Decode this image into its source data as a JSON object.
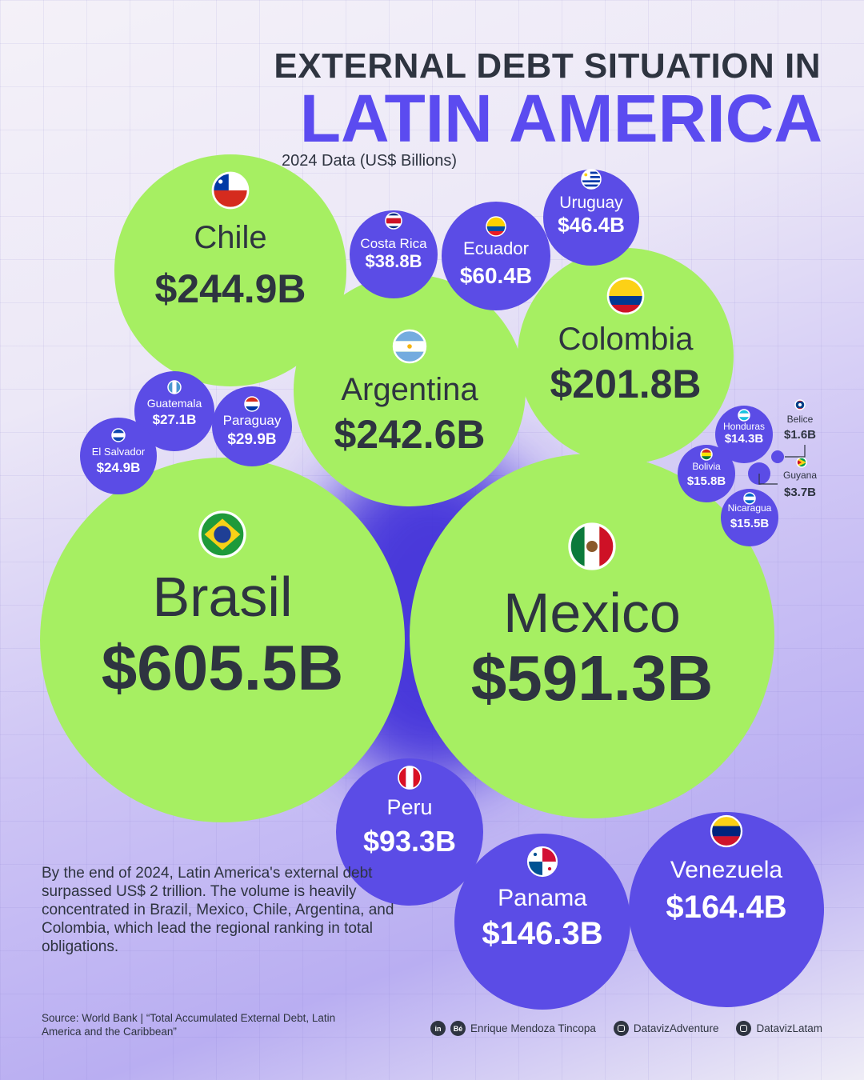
{
  "header": {
    "title_line1": "EXTERNAL DEBT SITUATION IN",
    "title_line2": "LATIN AMERICA",
    "subtitle": "2024 Data (US$ Billions)"
  },
  "chart_data": {
    "type": "bubble",
    "title": "EXTERNAL DEBT SITUATION IN LATIN AMERICA",
    "subtitle": "2024 Data (US$ Billions)",
    "unit": "US$ Billions",
    "series": [
      {
        "country": "Brasil",
        "label": "$605.5B",
        "value": 605.5,
        "flag": "brazil-flag-icon"
      },
      {
        "country": "Mexico",
        "label": "$591.3B",
        "value": 591.3,
        "flag": "mexico-flag-icon"
      },
      {
        "country": "Chile",
        "label": "$244.9B",
        "value": 244.9,
        "flag": "chile-flag-icon"
      },
      {
        "country": "Argentina",
        "label": "$242.6B",
        "value": 242.6,
        "flag": "argentina-flag-icon"
      },
      {
        "country": "Colombia",
        "label": "$201.8B",
        "value": 201.8,
        "flag": "colombia-flag-icon"
      },
      {
        "country": "Venezuela",
        "label": "$164.4B",
        "value": 164.4,
        "flag": "venezuela-flag-icon"
      },
      {
        "country": "Panama",
        "label": "$146.3B",
        "value": 146.3,
        "flag": "panama-flag-icon"
      },
      {
        "country": "Peru",
        "label": "$93.3B",
        "value": 93.3,
        "flag": "peru-flag-icon"
      },
      {
        "country": "Ecuador",
        "label": "$60.4B",
        "value": 60.4,
        "flag": "ecuador-flag-icon"
      },
      {
        "country": "Uruguay",
        "label": "$46.4B",
        "value": 46.4,
        "flag": "uruguay-flag-icon"
      },
      {
        "country": "Costa Rica",
        "label": "$38.8B",
        "value": 38.8,
        "flag": "costa-rica-flag-icon"
      },
      {
        "country": "Paraguay",
        "label": "$29.9B",
        "value": 29.9,
        "flag": "paraguay-flag-icon"
      },
      {
        "country": "Guatemala",
        "label": "$27.1B",
        "value": 27.1,
        "flag": "guatemala-flag-icon"
      },
      {
        "country": "El Salvador",
        "label": "$24.9B",
        "value": 24.9,
        "flag": "el-salvador-flag-icon"
      },
      {
        "country": "Bolivia",
        "label": "$15.8B",
        "value": 15.8,
        "flag": "bolivia-flag-icon"
      },
      {
        "country": "Nicaragua",
        "label": "$15.5B",
        "value": 15.5,
        "flag": "nicaragua-flag-icon"
      },
      {
        "country": "Honduras",
        "label": "$14.3B",
        "value": 14.3,
        "flag": "honduras-flag-icon"
      },
      {
        "country": "Guyana",
        "label": "$3.7B",
        "value": 3.7,
        "flag": "guyana-flag-icon"
      },
      {
        "country": "Belice",
        "label": "$1.6B",
        "value": 1.6,
        "flag": "belize-flag-icon"
      }
    ],
    "colors": {
      "top_five": "#a6ef62",
      "others": "#5b4ce6",
      "text": "#2e3440",
      "title_accent": "#5b4bf0"
    }
  },
  "note": "By the end of 2024, Latin America's external debt surpassed US$ 2 trillion. The volume is heavily concentrated in Brazil, Mexico, Chile, Argentina, and Colombia, which lead the regional ranking in total obligations.",
  "source": "Source: World Bank | “Total Accumulated External Debt, Latin America and the Caribbean”",
  "credits": {
    "linkedin_icon": "in",
    "behance_icon": "Bé",
    "author": "Enrique Mendoza Tincopa",
    "instagram1": "DatavizAdventure",
    "instagram2": "DatavizLatam"
  }
}
